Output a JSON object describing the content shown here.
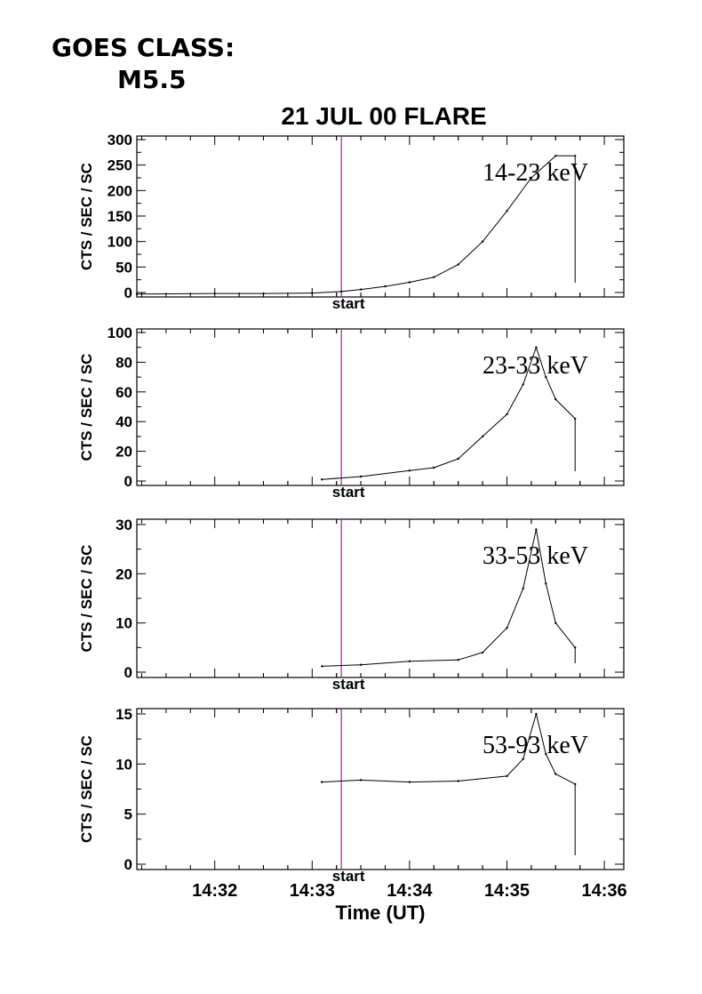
{
  "goes": {
    "line1": "GOES CLASS:",
    "line2": "M5.5"
  },
  "title": "21 JUL 00 FLARE",
  "xlabel": "Time (UT)",
  "ylabel": "CTS / SEC / SC",
  "marker_label": "start",
  "colors": {
    "marker": "#a020a0",
    "trace": "#000000"
  },
  "chart_data": {
    "type": "line",
    "title": "21 JUL 00 FLARE",
    "xlabel": "Time (UT)",
    "ylabel": "CTS / SEC / SC",
    "xlim": [
      "14:31:12",
      "14:36:12"
    ],
    "x_ticks": [
      "14:32",
      "14:33",
      "14:34",
      "14:35",
      "14:36"
    ],
    "start_marker": "14:33:18",
    "grid": false,
    "panels": [
      {
        "band": "14-23 keV",
        "ylim": [
          0,
          300
        ],
        "yticks": [
          0,
          50,
          100,
          150,
          200,
          250,
          300
        ],
        "x": [
          "14:31:12",
          "14:32:00",
          "14:32:30",
          "14:33:00",
          "14:33:18",
          "14:33:30",
          "14:33:45",
          "14:34:00",
          "14:34:15",
          "14:34:30",
          "14:34:45",
          "14:35:00",
          "14:35:15",
          "14:35:30",
          "14:35:42"
        ],
        "values": [
          -3,
          -2,
          -2,
          -1,
          2,
          6,
          12,
          20,
          30,
          55,
          100,
          160,
          225,
          268,
          268
        ]
      },
      {
        "band": "23-33 keV",
        "ylim": [
          0,
          100
        ],
        "yticks": [
          0,
          20,
          40,
          60,
          80,
          100
        ],
        "x": [
          "14:33:06",
          "14:33:30",
          "14:34:00",
          "14:34:15",
          "14:34:30",
          "14:34:45",
          "14:35:00",
          "14:35:10",
          "14:35:18",
          "14:35:24",
          "14:35:30",
          "14:35:42"
        ],
        "values": [
          1,
          3,
          7,
          9,
          15,
          30,
          45,
          65,
          90,
          70,
          55,
          42
        ]
      },
      {
        "band": "33-53 keV",
        "ylim": [
          0,
          30
        ],
        "yticks": [
          0,
          10,
          20,
          30
        ],
        "x": [
          "14:33:06",
          "14:33:30",
          "14:34:00",
          "14:34:30",
          "14:34:45",
          "14:35:00",
          "14:35:10",
          "14:35:18",
          "14:35:24",
          "14:35:30",
          "14:35:42"
        ],
        "values": [
          1.2,
          1.5,
          2.2,
          2.5,
          4,
          9,
          17,
          29,
          18,
          10,
          5
        ]
      },
      {
        "band": "53-93 keV",
        "ylim": [
          0,
          15
        ],
        "yticks": [
          0,
          5,
          10,
          15
        ],
        "x": [
          "14:33:06",
          "14:33:30",
          "14:34:00",
          "14:34:30",
          "14:35:00",
          "14:35:10",
          "14:35:18",
          "14:35:24",
          "14:35:30",
          "14:35:42"
        ],
        "values": [
          8.2,
          8.4,
          8.2,
          8.3,
          8.8,
          10.5,
          15,
          11,
          9,
          8
        ]
      }
    ]
  }
}
